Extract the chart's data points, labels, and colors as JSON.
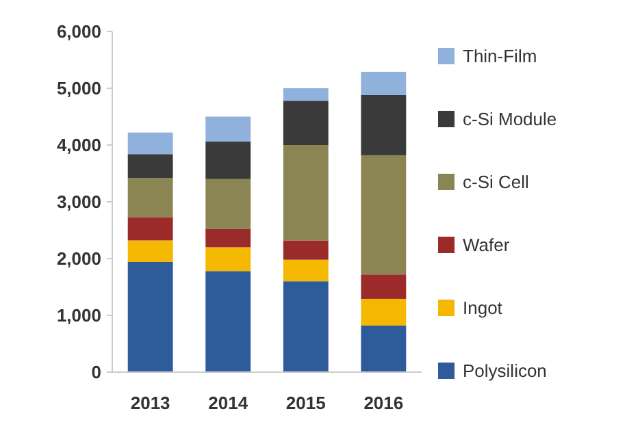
{
  "chart_data": {
    "type": "bar",
    "stacked": true,
    "categories": [
      "2013",
      "2014",
      "2015",
      "2016"
    ],
    "series": [
      {
        "name": "Polysilicon",
        "color": "#2e5c9a",
        "values": [
          1940,
          1780,
          1600,
          820
        ]
      },
      {
        "name": "Ingot",
        "color": "#f5b800",
        "values": [
          380,
          420,
          380,
          470
        ]
      },
      {
        "name": "Wafer",
        "color": "#9b2a2a",
        "values": [
          410,
          320,
          340,
          430
        ]
      },
      {
        "name": "c-Si Cell",
        "color": "#8b8553",
        "values": [
          690,
          880,
          1680,
          2100
        ]
      },
      {
        "name": "c-Si Module",
        "color": "#3a3a3a",
        "values": [
          420,
          660,
          780,
          1060
        ]
      },
      {
        "name": "Thin-Film",
        "color": "#8fb1dc",
        "values": [
          380,
          440,
          220,
          410
        ]
      }
    ],
    "ylim": [
      0,
      6000
    ],
    "yticks": [
      {
        "value": 0,
        "label": "0"
      },
      {
        "value": 1000,
        "label": "1,000"
      },
      {
        "value": 2000,
        "label": "2,000"
      },
      {
        "value": 3000,
        "label": "3,000"
      },
      {
        "value": 4000,
        "label": "4,000"
      },
      {
        "value": 5000,
        "label": "5,000"
      },
      {
        "value": 6000,
        "label": "6,000"
      }
    ],
    "grid": false,
    "legend": "right"
  }
}
